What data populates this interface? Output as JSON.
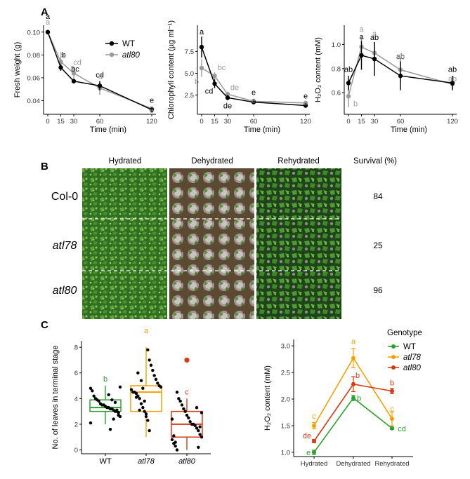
{
  "colors": {
    "wt": "#000000",
    "atl80_gray": "#999999",
    "green": "#2ca02c",
    "orange": "#f5a000",
    "red": "#d63a12"
  },
  "chart_data": [
    {
      "panel": "A",
      "type": "line",
      "title": "",
      "xlabel": "Time (min)",
      "ylabel": "Fresh weight (g)",
      "x": [
        0,
        15,
        30,
        60,
        120
      ],
      "ylim": [
        0.028,
        0.106
      ],
      "yticks": [
        0.04,
        0.06,
        0.08,
        0.1
      ],
      "ytick_labels": [
        "0.04",
        "0.06",
        "0.08",
        "0.10"
      ],
      "legend": [
        "WT",
        "atl80"
      ],
      "legend_position": "top-right",
      "series": [
        {
          "name": "WT",
          "color_key": "wt",
          "values": [
            0.1,
            0.069,
            0.057,
            0.053,
            0.032
          ],
          "err": [
            0.002,
            0.003,
            0.002,
            0.004,
            0.002
          ],
          "labels": [
            "a",
            "b",
            "bc",
            "cd",
            "e"
          ]
        },
        {
          "name": "atl80",
          "color_key": "atl80_gray",
          "values": [
            0.1,
            0.074,
            0.064,
            0.051,
            0.033
          ],
          "err": [
            0.001,
            0.004,
            0.006,
            0.006,
            0.002
          ],
          "labels": [
            "a",
            "b",
            "cd",
            "d",
            "e"
          ]
        }
      ]
    },
    {
      "panel": "A",
      "type": "line",
      "title": "",
      "xlabel": "Time (min)",
      "ylabel": "Chlorophyll content (µg ml⁻¹)",
      "x": [
        0,
        15,
        30,
        60,
        120
      ],
      "ylim": [
        0.3,
        10.5
      ],
      "yticks": [
        2.5,
        5.0,
        7.5
      ],
      "ytick_labels": [
        "2.5",
        "5.0",
        "7.5"
      ],
      "series": [
        {
          "name": "WT",
          "color_key": "wt",
          "values": [
            8.0,
            3.8,
            2.2,
            1.7,
            1.3
          ],
          "err": [
            1.2,
            0.5,
            0.3,
            0.2,
            0.2
          ],
          "labels": [
            "a",
            "cd",
            "de",
            "e",
            "e"
          ]
        },
        {
          "name": "atl80",
          "color_key": "atl80_gray",
          "values": [
            5.6,
            4.7,
            2.6,
            1.8,
            1.6
          ],
          "err": [
            1.0,
            0.4,
            0.3,
            0.2,
            0.2
          ],
          "labels": [
            "b",
            "bc",
            "de",
            "e",
            "e"
          ]
        }
      ]
    },
    {
      "panel": "A",
      "type": "line",
      "title": "",
      "xlabel": "Time (min)",
      "ylabel": "H₂O₂ content (mM)",
      "x": [
        0,
        15,
        30,
        60,
        120
      ],
      "ylim": [
        0.42,
        1.16
      ],
      "yticks": [
        0.6,
        0.8,
        1.0
      ],
      "ytick_labels": [
        "0.6",
        "0.8",
        "1.0"
      ],
      "series": [
        {
          "name": "WT",
          "color_key": "wt",
          "values": [
            0.68,
            0.91,
            0.88,
            0.74,
            0.68
          ],
          "err": [
            0.06,
            0.12,
            0.14,
            0.12,
            0.06
          ],
          "labels": [
            "ab",
            "a",
            "ab",
            "ab",
            "ab"
          ]
        },
        {
          "name": "atl80",
          "color_key": "atl80_gray",
          "values": [
            0.57,
            0.98,
            0.93,
            0.79,
            0.67
          ],
          "err": [
            0.09,
            0.08,
            0.09,
            0.1,
            0.04
          ],
          "labels": [
            "b",
            "a",
            "a",
            "ab",
            "ab"
          ]
        }
      ]
    },
    {
      "panel": "C",
      "type": "box",
      "xlabel": "",
      "ylabel": "No. of leaves in terminal stage",
      "categories": [
        "WT",
        "atl78",
        "atl80"
      ],
      "ylim": [
        -0.3,
        8.5
      ],
      "yticks": [
        0,
        2,
        4,
        6,
        8
      ],
      "ytick_labels": [
        "0",
        "2",
        "4",
        "6",
        "8"
      ],
      "boxes": [
        {
          "name": "WT",
          "color_key": "green",
          "q1": 3.0,
          "median": 3.3,
          "q3": 3.9,
          "whisker_low": 2.0,
          "whisker_high": 5.0,
          "outliers": [],
          "letter": "b",
          "points": [
            2.1,
            2.6,
            2.9,
            3.0,
            3.0,
            3.1,
            3.2,
            3.2,
            3.3,
            3.3,
            3.4,
            3.5,
            3.5,
            3.6,
            3.8,
            3.9,
            4.0,
            4.2,
            4.6,
            4.8,
            4.9,
            2.7,
            3.1,
            3.7,
            2.4,
            3.9,
            1.6,
            4.3
          ]
        },
        {
          "name": "atl78",
          "color_key": "orange",
          "q1": 3.0,
          "median": 4.5,
          "q3": 5.0,
          "whisker_low": 1.0,
          "whisker_high": 8.0,
          "outliers": [],
          "letter": "a",
          "points": [
            1.5,
            2.3,
            2.8,
            3.0,
            3.3,
            3.6,
            4.0,
            4.2,
            4.4,
            4.5,
            4.5,
            4.7,
            4.9,
            5.0,
            5.2,
            5.5,
            5.8,
            6.2,
            6.6,
            7.0,
            7.8,
            2.6,
            3.8,
            4.8,
            5.4,
            3.1,
            6.0,
            4.1
          ]
        },
        {
          "name": "atl80",
          "color_key": "red",
          "q1": 1.0,
          "median": 2.0,
          "q3": 3.0,
          "whisker_low": 0.0,
          "whisker_high": 4.0,
          "outliers": [
            7.0
          ],
          "letter": "c",
          "points": [
            0.0,
            0.3,
            0.5,
            0.8,
            1.0,
            1.2,
            1.5,
            1.7,
            1.9,
            2.0,
            2.0,
            2.2,
            2.5,
            2.7,
            3.0,
            3.2,
            3.5,
            3.8,
            4.0,
            4.5,
            0.6,
            1.1,
            2.4,
            2.9,
            1.8,
            0.2,
            3.3
          ]
        }
      ]
    },
    {
      "panel": "C",
      "type": "line",
      "xlabel": "",
      "ylabel": "H₂O₂ content (mM)",
      "categories": [
        "Hydrated",
        "Dehydrated",
        "Rehydrated"
      ],
      "ylim": [
        0.92,
        3.12
      ],
      "yticks": [
        1.0,
        1.5,
        2.0,
        2.5,
        3.0
      ],
      "ytick_labels": [
        "1.0",
        "1.5",
        "2.0",
        "2.5",
        "3.0"
      ],
      "legend_title": "Genotype",
      "legend": [
        "WT",
        "atl78",
        "atl80"
      ],
      "legend_position": "top-right",
      "series": [
        {
          "name": "WT",
          "color_key": "green",
          "values": [
            1.0,
            2.02,
            1.45
          ],
          "err": [
            0.04,
            0.05,
            0.02
          ],
          "labels": [
            "e",
            "b",
            "cd"
          ]
        },
        {
          "name": "atl78",
          "color_key": "orange",
          "values": [
            1.5,
            2.77,
            1.63
          ],
          "err": [
            0.06,
            0.18,
            0.13
          ],
          "labels": [
            "c",
            "a",
            "c"
          ]
        },
        {
          "name": "atl80",
          "color_key": "red",
          "values": [
            1.21,
            2.28,
            2.15
          ],
          "err": [
            0.03,
            0.14,
            0.05
          ],
          "labels": [
            "de",
            "b",
            "b"
          ]
        }
      ]
    }
  ],
  "photo_panel": {
    "letter": "B",
    "columns": [
      "Hydrated",
      "Dehydrated",
      "Rehydrated"
    ],
    "survival_header": "Survival (%)",
    "rows": [
      {
        "label": "Col-0",
        "italic": false,
        "survival": "84"
      },
      {
        "label": "atl78",
        "italic": true,
        "survival": "25"
      },
      {
        "label": "atl80",
        "italic": true,
        "survival": "96"
      }
    ]
  },
  "panel_letters": {
    "a": "A",
    "b": "B",
    "c": "C"
  }
}
